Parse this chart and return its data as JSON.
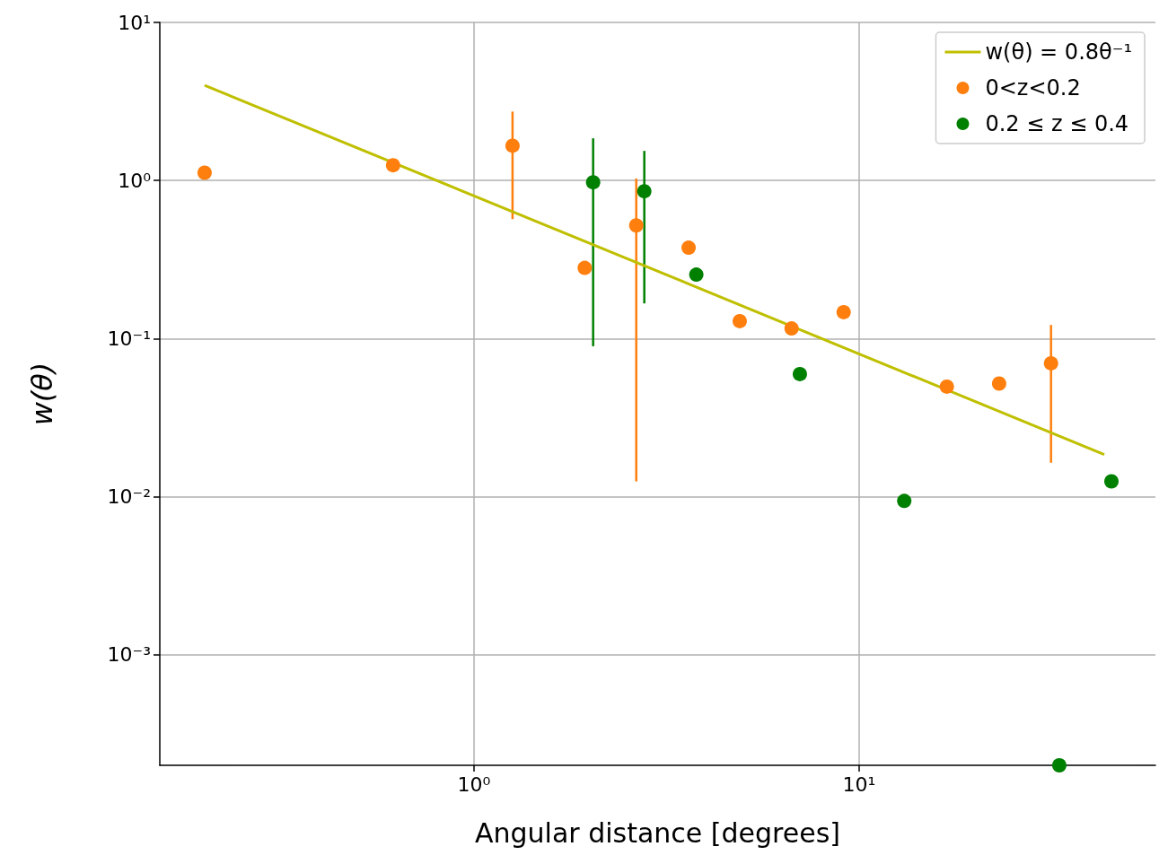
{
  "chart_data": {
    "type": "scatter",
    "xlabel": "Angular distance [degrees]",
    "ylabel": "w(θ)",
    "log": "xy",
    "grid": true,
    "legend": "top right",
    "marker": "circle",
    "xlim": [
      0.153,
      58.8
    ],
    "ylim": [
      0.0002,
      10
    ],
    "xticks": [
      {
        "value": 1,
        "label": "10⁰"
      },
      {
        "value": 10,
        "label": "10¹"
      }
    ],
    "yticks": [
      {
        "value": 0.001,
        "label": "10⁻³"
      },
      {
        "value": 0.01,
        "label": "10⁻²"
      },
      {
        "value": 0.1,
        "label": "10⁻¹"
      },
      {
        "value": 1,
        "label": "10⁰"
      },
      {
        "value": 10,
        "label": "10¹"
      }
    ],
    "series": [
      {
        "name": "w(θ) = 0.8θ⁻¹",
        "type": "line",
        "color": "#bfbf00",
        "marker": "none",
        "line_style": "solid",
        "x": [
          0.2,
          43.3
        ],
        "values": [
          4.0,
          0.0185
        ]
      },
      {
        "name": "0<z<0.2",
        "color": "#ff7f0e",
        "x": [
          0.2,
          0.617,
          1.26,
          1.94,
          2.64,
          3.61,
          4.9,
          6.68,
          9.12,
          16.9,
          23.1,
          31.5
        ],
        "values": [
          1.12,
          1.25,
          1.66,
          0.28,
          0.52,
          0.376,
          0.129,
          0.116,
          0.147,
          0.0497,
          0.052,
          0.0698
        ],
        "errors": [
          null,
          null,
          [
            0.57,
            2.73
          ],
          null,
          [
            0.0125,
            1.03
          ],
          null,
          null,
          null,
          null,
          null,
          null,
          [
            0.0164,
            0.122
          ]
        ]
      },
      {
        "name": "0.2 ≤ z ≤ 0.4",
        "color": "#008000",
        "x": [
          2.04,
          2.77,
          3.78,
          7.02,
          13.1,
          33.1,
          45.2
        ],
        "values": [
          0.975,
          0.855,
          0.254,
          0.0597,
          0.0094,
          0.0002,
          0.0125
        ],
        "errors": [
          [
            0.0895,
            1.85
          ],
          [
            0.167,
            1.54
          ],
          null,
          null,
          null,
          null,
          null
        ]
      }
    ]
  }
}
